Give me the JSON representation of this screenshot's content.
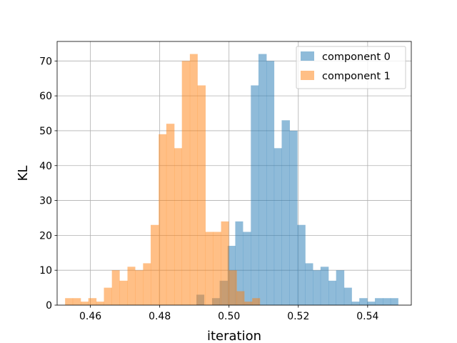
{
  "chart_data": {
    "type": "bar",
    "subtype": "histogram",
    "title": "",
    "xlabel": "iteration",
    "ylabel": "KL",
    "xlim": [
      0.4504,
      0.5526
    ],
    "ylim": [
      0,
      75.6
    ],
    "xticks": [
      "0.46",
      "0.48",
      "0.50",
      "0.52",
      "0.54"
    ],
    "yticks": [
      "0",
      "10",
      "20",
      "30",
      "40",
      "50",
      "60",
      "70"
    ],
    "grid": true,
    "legend_position": "top-right",
    "overlap_color": "#c18c62",
    "series": [
      {
        "name": "component 0",
        "color": "#1f77b4",
        "opacity": 0.5,
        "bin_edges": [
          0.4906,
          0.4928,
          0.4951,
          0.4973,
          0.4996,
          0.5018,
          0.504,
          0.5063,
          0.5085,
          0.5108,
          0.513,
          0.5152,
          0.5175,
          0.5197,
          0.522,
          0.5242,
          0.5264,
          0.5287,
          0.5309,
          0.5332,
          0.5354,
          0.5376,
          0.5399,
          0.5421,
          0.5444,
          0.5466,
          0.5488
        ],
        "counts": [
          3,
          0,
          2,
          7,
          17,
          24,
          21,
          63,
          72,
          70,
          45,
          53,
          50,
          23,
          12,
          10,
          11,
          7,
          10,
          5,
          1,
          2,
          1,
          2,
          2,
          2
        ]
      },
      {
        "name": "component 1",
        "color": "#ff7f0e",
        "opacity": 0.5,
        "bin_edges": [
          0.4527,
          0.4549,
          0.4572,
          0.4594,
          0.4617,
          0.4639,
          0.4662,
          0.4684,
          0.4707,
          0.4729,
          0.4752,
          0.4774,
          0.4797,
          0.4819,
          0.4842,
          0.4864,
          0.4887,
          0.4909,
          0.4932,
          0.4954,
          0.4977,
          0.4999,
          0.5022,
          0.5044,
          0.5067,
          0.5089
        ],
        "counts": [
          2,
          2,
          1,
          2,
          1,
          5,
          10,
          7,
          11,
          10,
          12,
          23,
          49,
          52,
          45,
          70,
          72,
          63,
          21,
          21,
          24,
          10,
          4,
          1,
          2
        ]
      }
    ]
  }
}
